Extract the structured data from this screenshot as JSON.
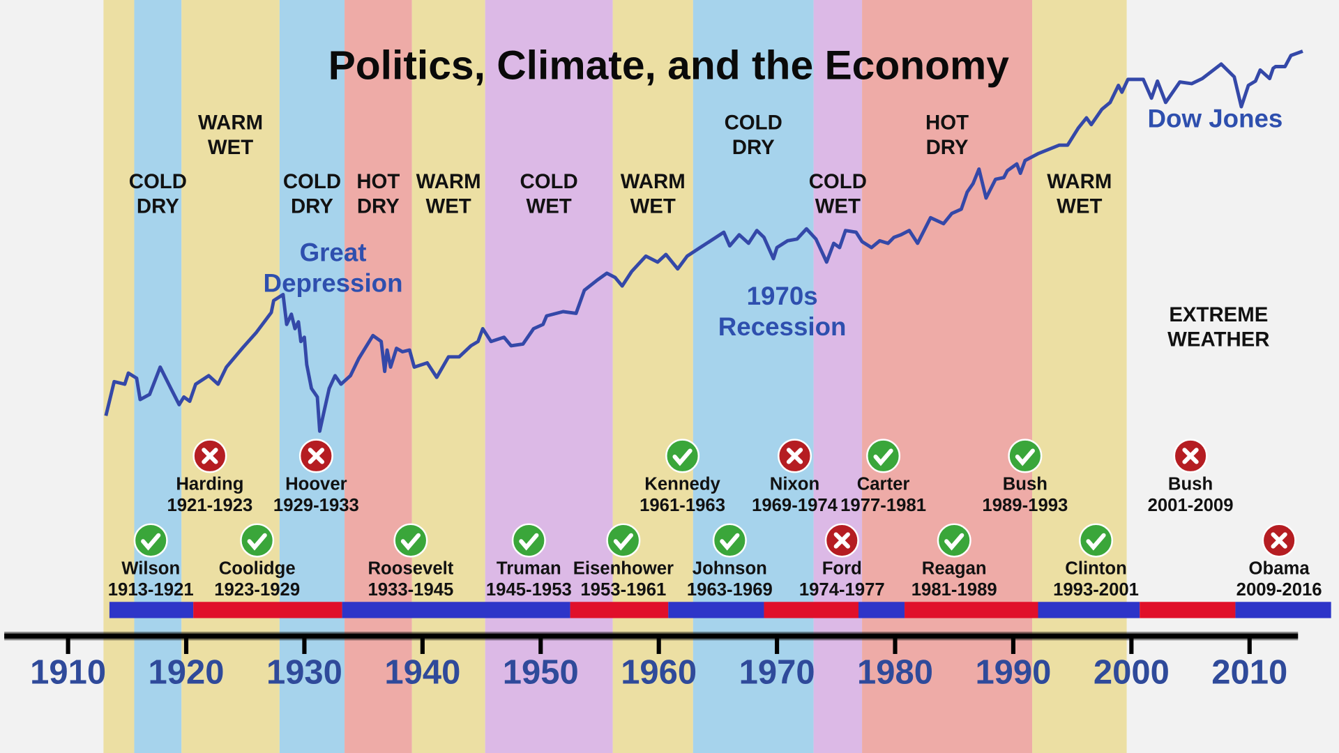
{
  "chart_data": {
    "type": "timeline",
    "title": "Politics, Climate, and the Economy",
    "xlim": [
      1904.6,
      2014.1
    ],
    "xticks": [
      1910,
      1920,
      1930,
      1940,
      1950,
      1960,
      1970,
      1980,
      1990,
      2000,
      2010
    ],
    "tick_color": "#2f4a9a",
    "bands": [
      {
        "start": 1913.0,
        "end": 1915.6,
        "color": "#ecdfa3",
        "label": []
      },
      {
        "start": 1915.6,
        "end": 1919.6,
        "color": "#a6d3ec",
        "label": [
          "COLD",
          "DRY"
        ]
      },
      {
        "start": 1919.6,
        "end": 1927.9,
        "color": "#ecdfa3",
        "label": [
          "WARM",
          "WET"
        ]
      },
      {
        "start": 1927.9,
        "end": 1933.4,
        "color": "#a6d3ec",
        "label": [
          "COLD",
          "DRY"
        ]
      },
      {
        "start": 1933.4,
        "end": 1939.1,
        "color": "#eeaba7",
        "label": [
          "HOT",
          "DRY"
        ]
      },
      {
        "start": 1939.1,
        "end": 1945.3,
        "color": "#ecdfa3",
        "label": [
          "WARM",
          "WET"
        ]
      },
      {
        "start": 1945.3,
        "end": 1956.1,
        "color": "#dcb9e6",
        "label": [
          "COLD",
          "WET"
        ]
      },
      {
        "start": 1956.1,
        "end": 1962.9,
        "color": "#ecdfa3",
        "label": [
          "WARM",
          "WET"
        ]
      },
      {
        "start": 1962.9,
        "end": 1973.1,
        "color": "#a6d3ec",
        "label": [
          "COLD",
          "DRY"
        ]
      },
      {
        "start": 1973.1,
        "end": 1977.2,
        "color": "#dcb9e6",
        "label": [
          "COLD",
          "WET"
        ]
      },
      {
        "start": 1977.2,
        "end": 1991.6,
        "color": "#eeaba7",
        "label": [
          "HOT",
          "DRY"
        ]
      },
      {
        "start": 1991.6,
        "end": 1999.6,
        "color": "#ecdfa3",
        "label": [
          "WARM",
          "WET"
        ]
      }
    ],
    "ylim": [
      0,
      500
    ],
    "series": [
      {
        "name": "Dow Jones",
        "color": "#3448a8",
        "x": [
          1913.2,
          1913.9,
          1914.8,
          1915.1,
          1915.8,
          1916.1,
          1916.9,
          1917.8,
          1918.7,
          1919.4,
          1919.8,
          1920.3,
          1920.8,
          1921.9,
          1922.7,
          1923.4,
          1924.8,
          1925.9,
          1927.2,
          1927.4,
          1928.2,
          1928.5,
          1928.9,
          1929.2,
          1929.5,
          1929.7,
          1930.0,
          1930.2,
          1930.6,
          1931.1,
          1931.3,
          1931.7,
          1932.1,
          1932.6,
          1933.1,
          1933.9,
          1934.6,
          1935.8,
          1936.5,
          1936.8,
          1937.0,
          1937.3,
          1937.8,
          1938.3,
          1938.9,
          1939.3,
          1940.4,
          1941.2,
          1942.2,
          1943.1,
          1944.1,
          1944.7,
          1945.1,
          1945.8,
          1946.9,
          1947.5,
          1948.5,
          1949.4,
          1950.2,
          1950.5,
          1951.9,
          1953.0,
          1953.7,
          1954.8,
          1955.6,
          1956.3,
          1956.9,
          1957.7,
          1958.9,
          1959.9,
          1960.6,
          1961.6,
          1962.4,
          1963.5,
          1965.5,
          1966.0,
          1966.8,
          1967.6,
          1968.3,
          1968.9,
          1969.7,
          1970.0,
          1970.9,
          1971.7,
          1972.5,
          1973.3,
          1974.2,
          1974.8,
          1975.3,
          1975.8,
          1976.7,
          1977.2,
          1978.0,
          1978.7,
          1979.4,
          1979.9,
          1980.5,
          1981.2,
          1981.9,
          1983.0,
          1984.1,
          1984.8,
          1985.6,
          1986.1,
          1986.6,
          1987.1,
          1987.7,
          1988.5,
          1989.2,
          1989.5,
          1990.3,
          1990.6,
          1991.0,
          1992.1,
          1993.9,
          1994.6,
          1995.5,
          1996.2,
          1996.6,
          1997.5,
          1998.2,
          1998.9,
          1999.2,
          1999.7,
          2001.0,
          2001.7,
          2002.2,
          2002.9,
          2004.1,
          2005.1,
          2006.0,
          2007.6,
          2008.7,
          2009.3,
          2009.9,
          2010.5,
          2010.9,
          2011.7,
          2012.0,
          2012.2,
          2013.0,
          2013.5,
          2014.5
        ],
        "values": [
          73,
          113,
          110,
          123,
          117,
          92,
          98,
          130,
          105,
          86,
          95,
          90,
          110,
          120,
          110,
          130,
          153,
          170,
          194,
          208,
          215,
          180,
          192,
          175,
          183,
          160,
          165,
          133,
          105,
          95,
          55,
          80,
          105,
          120,
          110,
          120,
          140,
          167,
          160,
          125,
          150,
          130,
          152,
          148,
          150,
          130,
          135,
          118,
          142,
          142,
          155,
          160,
          175,
          160,
          165,
          155,
          157,
          175,
          180,
          190,
          195,
          193,
          220,
          232,
          240,
          235,
          225,
          242,
          260,
          253,
          262,
          245,
          260,
          270,
          288,
          272,
          285,
          275,
          290,
          282,
          257,
          270,
          278,
          280,
          292,
          280,
          253,
          275,
          270,
          290,
          288,
          277,
          270,
          278,
          275,
          282,
          285,
          290,
          275,
          305,
          298,
          310,
          315,
          335,
          345,
          362,
          328,
          350,
          352,
          360,
          368,
          357,
          372,
          380,
          390,
          390,
          410,
          422,
          414,
          432,
          440,
          460,
          452,
          467,
          467,
          445,
          465,
          440,
          464,
          462,
          468,
          485,
          470,
          435,
          460,
          465,
          478,
          468,
          480,
          482,
          482,
          495,
          500
        ]
      }
    ],
    "annotations": [
      {
        "lines": [
          "Great",
          "Depression"
        ],
        "color": "#2e4fae"
      },
      {
        "lines": [
          "1970s",
          "Recession"
        ],
        "color": "#2e4fae"
      },
      {
        "lines": [
          "EXTREME",
          "WEATHER"
        ],
        "color": "#111111"
      }
    ],
    "presidents": [
      {
        "name": "Wilson",
        "term": [
          1913,
          1921
        ],
        "term_label": "1913-1921",
        "mark": "check"
      },
      {
        "name": "Harding",
        "term": [
          1921,
          1923
        ],
        "term_label": "1921-1923",
        "mark": "cross"
      },
      {
        "name": "Coolidge",
        "term": [
          1923,
          1929
        ],
        "term_label": "1923-1929",
        "mark": "check"
      },
      {
        "name": "Hoover",
        "term": [
          1929,
          1933
        ],
        "term_label": "1929-1933",
        "mark": "cross"
      },
      {
        "name": "Roosevelt",
        "term": [
          1933,
          1945
        ],
        "term_label": "1933-1945",
        "mark": "check"
      },
      {
        "name": "Truman",
        "term": [
          1945,
          1953
        ],
        "term_label": "1945-1953",
        "mark": "check"
      },
      {
        "name": "Eisenhower",
        "term": [
          1953,
          1961
        ],
        "term_label": "1953-1961",
        "mark": "check"
      },
      {
        "name": "Kennedy",
        "term": [
          1961,
          1963
        ],
        "term_label": "1961-1963",
        "mark": "check"
      },
      {
        "name": "Johnson",
        "term": [
          1963,
          1969
        ],
        "term_label": "1963-1969",
        "mark": "check"
      },
      {
        "name": "Nixon",
        "term": [
          1969,
          1974
        ],
        "term_label": "1969-1974",
        "mark": "cross"
      },
      {
        "name": "Ford",
        "term": [
          1974,
          1977
        ],
        "term_label": "1974-1977",
        "mark": "cross"
      },
      {
        "name": "Carter",
        "term": [
          1977,
          1981
        ],
        "term_label": "1977-1981",
        "mark": "check"
      },
      {
        "name": "Reagan",
        "term": [
          1981,
          1989
        ],
        "term_label": "1981-1989",
        "mark": "check"
      },
      {
        "name": "Bush",
        "term": [
          1989,
          1993
        ],
        "term_label": "1989-1993",
        "mark": "check"
      },
      {
        "name": "Clinton",
        "term": [
          1993,
          2001
        ],
        "term_label": "1993-2001",
        "mark": "check"
      },
      {
        "name": "Bush",
        "term": [
          2001,
          2009
        ],
        "term_label": "2001-2009",
        "mark": "cross"
      },
      {
        "name": "Obama",
        "term": [
          2009,
          2016
        ],
        "term_label": "2009-2016",
        "mark": "cross"
      }
    ],
    "party_bar": [
      {
        "start": 1913.5,
        "end": 1920.6,
        "color": "#2e35c8"
      },
      {
        "start": 1920.6,
        "end": 1933.2,
        "color": "#e0102a"
      },
      {
        "start": 1933.2,
        "end": 1952.5,
        "color": "#2e35c8"
      },
      {
        "start": 1952.5,
        "end": 1960.8,
        "color": "#e0102a"
      },
      {
        "start": 1960.8,
        "end": 1968.9,
        "color": "#2e35c8"
      },
      {
        "start": 1968.9,
        "end": 1976.9,
        "color": "#e0102a"
      },
      {
        "start": 1976.9,
        "end": 1980.8,
        "color": "#2e35c8"
      },
      {
        "start": 1980.8,
        "end": 1992.1,
        "color": "#e0102a"
      },
      {
        "start": 1992.1,
        "end": 2000.7,
        "color": "#2e35c8"
      },
      {
        "start": 2000.7,
        "end": 2008.8,
        "color": "#e0102a"
      },
      {
        "start": 2008.8,
        "end": 2016.9,
        "color": "#2e35c8"
      }
    ]
  }
}
